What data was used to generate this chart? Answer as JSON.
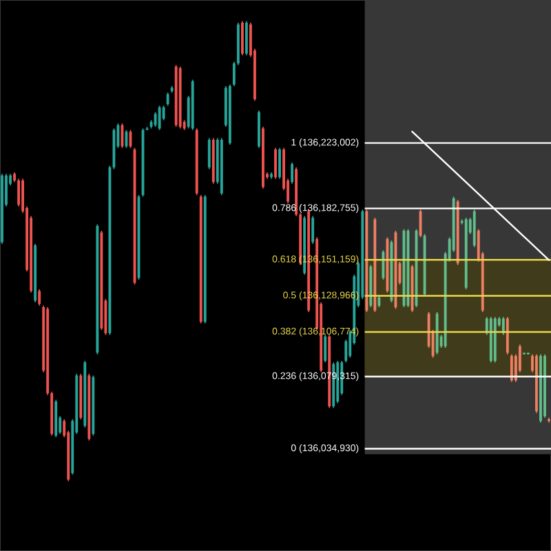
{
  "chart_data": {
    "type": "candlestick",
    "categories": [
      null,
      null,
      null,
      null,
      null,
      null,
      null,
      null,
      null,
      null,
      null,
      null,
      null,
      null,
      null,
      null,
      null,
      null,
      null,
      null,
      null,
      null,
      null,
      null,
      null,
      null,
      null,
      null,
      null,
      null,
      null,
      null,
      null,
      null,
      null,
      null,
      null,
      null,
      null,
      null,
      null,
      null,
      null,
      null,
      null,
      null,
      null,
      null,
      null,
      null,
      null,
      null,
      null,
      null,
      null,
      null,
      null,
      null,
      null,
      null,
      null,
      null,
      null,
      null,
      null,
      null,
      null,
      null,
      null,
      null,
      null,
      null,
      null,
      null,
      null,
      null,
      null,
      null,
      null,
      null,
      null,
      null,
      null,
      null,
      null,
      null,
      null,
      null,
      null,
      null,
      null,
      null,
      null,
      null,
      null,
      null,
      null,
      null,
      null,
      null,
      null,
      null,
      null,
      null,
      null,
      null,
      null,
      null,
      null,
      null,
      null,
      null,
      null,
      null,
      null,
      null,
      null,
      null,
      null,
      null,
      null,
      null,
      null,
      null,
      null,
      null,
      null,
      null,
      null,
      null,
      null,
      null,
      null
    ],
    "ohlc": [
      [
        136162000,
        136204000,
        136161000,
        136203000
      ],
      [
        136185000,
        136204000,
        136184000,
        136203000
      ],
      [
        136198000,
        136204000,
        136197000,
        136203000
      ],
      [
        136204000,
        136205000,
        136199000,
        136200000
      ],
      [
        136200000,
        136201000,
        136184000,
        136185000
      ],
      [
        136200000,
        136201000,
        136180000,
        136181000
      ],
      [
        136183000,
        136184000,
        136144000,
        136145000
      ],
      [
        136177000,
        136178000,
        136131000,
        136132000
      ],
      [
        136126000,
        136161000,
        136125000,
        136160000
      ],
      [
        136132000,
        136133000,
        136123000,
        136124000
      ],
      [
        136122000,
        136123000,
        136082000,
        136083000
      ],
      [
        136121000,
        136122000,
        136068000,
        136069000
      ],
      [
        136069000,
        136070000,
        136043000,
        136044000
      ],
      [
        136043000,
        136065000,
        136042000,
        136064000
      ],
      [
        136045000,
        136055000,
        136044000,
        136054000
      ],
      [
        136052000,
        136053000,
        136042000,
        136043000
      ],
      [
        136045000,
        136046000,
        136015000,
        136016000
      ],
      [
        136020000,
        136053000,
        136019000,
        136052000
      ],
      [
        136045000,
        136081000,
        136044000,
        136080000
      ],
      [
        136080000,
        136081000,
        136053000,
        136054000
      ],
      [
        136049000,
        136089000,
        136048000,
        136088000
      ],
      [
        136080000,
        136081000,
        136040000,
        136041000
      ],
      [
        136044000,
        136080000,
        136043000,
        136079000
      ],
      [
        136094000,
        136173000,
        136093000,
        136172000
      ],
      [
        136168000,
        136169000,
        136108000,
        136109000
      ],
      [
        136126000,
        136127000,
        136105000,
        136106000
      ],
      [
        136106000,
        136209000,
        136105000,
        136208000
      ],
      [
        136208000,
        136232000,
        136207000,
        136231000
      ],
      [
        136221000,
        136235000,
        136220000,
        136234000
      ],
      [
        136234000,
        136235000,
        136220000,
        136221000
      ],
      [
        136221000,
        136231000,
        136220000,
        136230000
      ],
      [
        136230000,
        136231000,
        136220000,
        136221000
      ],
      [
        136219000,
        136220000,
        136136000,
        136137000
      ],
      [
        136140000,
        136191000,
        136139000,
        136190000
      ],
      [
        136191000,
        136232000,
        136190000,
        136231000
      ],
      [
        136231000,
        136233000,
        136231000,
        136232000
      ],
      [
        136233000,
        136237000,
        136232000,
        136236000
      ],
      [
        136234000,
        136242000,
        136233000,
        136241000
      ],
      [
        136232000,
        136246000,
        136231000,
        136245000
      ],
      [
        136238000,
        136246000,
        136237000,
        136245000
      ],
      [
        136247000,
        136254000,
        136246000,
        136253000
      ],
      [
        136255000,
        136258000,
        136254000,
        136257000
      ],
      [
        136270000,
        136271000,
        136233000,
        136234000
      ],
      [
        136269000,
        136270000,
        136232000,
        136233000
      ],
      [
        136236000,
        136237000,
        136231000,
        136232000
      ],
      [
        136233000,
        136252000,
        136232000,
        136251000
      ],
      [
        136232000,
        136262000,
        136231000,
        136261000
      ],
      [
        136231000,
        136232000,
        136191000,
        136192000
      ],
      [
        136190000,
        136191000,
        136112000,
        136113000
      ],
      [
        136113000,
        136191000,
        136112000,
        136190000
      ],
      [
        136208000,
        136226000,
        136207000,
        136225000
      ],
      [
        136225000,
        136226000,
        136198000,
        136199000
      ],
      [
        136199000,
        136226000,
        136198000,
        136225000
      ],
      [
        136192000,
        136226000,
        136191000,
        136225000
      ],
      [
        136234000,
        136258000,
        136233000,
        136257000
      ],
      [
        136223000,
        136259000,
        136222000,
        136258000
      ],
      [
        136259000,
        136273000,
        136258000,
        136272000
      ],
      [
        136272000,
        136297000,
        136271000,
        136296000
      ],
      [
        136297000,
        136298000,
        136277000,
        136278000
      ],
      [
        136278000,
        136298000,
        136277000,
        136297000
      ],
      [
        136296000,
        136297000,
        136276000,
        136277000
      ],
      [
        136280000,
        136281000,
        136249000,
        136250000
      ],
      [
        136221000,
        136243000,
        136220000,
        136242000
      ],
      [
        136232000,
        136233000,
        136195000,
        136196000
      ],
      [
        136204000,
        136205000,
        136201000,
        136202000
      ],
      [
        136202000,
        136205000,
        136201000,
        136204000
      ],
      [
        136219000,
        136220000,
        136201000,
        136202000
      ],
      [
        136202000,
        136220000,
        136201000,
        136219000
      ],
      [
        136219000,
        136220000,
        136194000,
        136195000
      ],
      [
        136200000,
        136201000,
        136186000,
        136187000
      ],
      [
        136199000,
        136211000,
        136198000,
        136210000
      ],
      [
        136207000,
        136208000,
        136178000,
        136179000
      ],
      [
        136179000,
        136180000,
        136148000,
        136149000
      ],
      [
        136143000,
        136178000,
        136142000,
        136177000
      ],
      [
        136181000,
        136182000,
        136119000,
        136120000
      ],
      [
        136162000,
        136178000,
        136161000,
        136177000
      ],
      [
        136164000,
        136165000,
        136108000,
        136109000
      ],
      [
        136124000,
        136125000,
        136082000,
        136083000
      ],
      [
        136089000,
        136105000,
        136088000,
        136104000
      ],
      [
        136104000,
        136105000,
        136060000,
        136061000
      ],
      [
        136061000,
        136088000,
        136060000,
        136087000
      ],
      [
        136064000,
        136089000,
        136063000,
        136088000
      ],
      [
        136069000,
        136089000,
        136068000,
        136088000
      ],
      [
        136089000,
        136102000,
        136088000,
        136101000
      ],
      [
        136092000,
        136108000,
        136091000,
        136107000
      ],
      [
        136100000,
        136142000,
        136099000,
        136141000
      ],
      [
        136123000,
        136150000,
        136122000,
        136149000
      ],
      [
        136128000,
        136182000,
        136127000,
        136181000
      ],
      [
        136181000,
        136182000,
        136119000,
        136120000
      ],
      [
        136123000,
        136148000,
        136122000,
        136147000
      ],
      [
        136176000,
        136177000,
        136119000,
        136120000
      ],
      [
        136123000,
        136129000,
        136122000,
        136128000
      ],
      [
        136140000,
        136157000,
        136139000,
        136156000
      ],
      [
        136164000,
        136165000,
        136131000,
        136132000
      ],
      [
        136126000,
        136163000,
        136125000,
        136162000
      ],
      [
        136168000,
        136169000,
        136121000,
        136122000
      ],
      [
        136149000,
        136150000,
        136136000,
        136137000
      ],
      [
        136123000,
        136170000,
        136122000,
        136169000
      ],
      [
        136123000,
        136170000,
        136122000,
        136169000
      ],
      [
        136147000,
        136148000,
        136119000,
        136120000
      ],
      [
        136123000,
        136170000,
        136122000,
        136169000
      ],
      [
        136181000,
        136182000,
        136165000,
        136166000
      ],
      [
        136130000,
        136167000,
        136129000,
        136166000
      ],
      [
        136118000,
        136119000,
        136097000,
        136098000
      ],
      [
        136107000,
        136108000,
        136091000,
        136092000
      ],
      [
        136094000,
        136119000,
        136093000,
        136118000
      ],
      [
        136098000,
        136105000,
        136097000,
        136104000
      ],
      [
        136098000,
        136156000,
        136097000,
        136155000
      ],
      [
        136151000,
        136165000,
        136150000,
        136164000
      ],
      [
        136157000,
        136190000,
        136156000,
        136189000
      ],
      [
        136187000,
        136188000,
        136148000,
        136149000
      ],
      [
        136174000,
        136176000,
        136173000,
        136175000
      ],
      [
        136134000,
        136177000,
        136133000,
        136176000
      ],
      [
        136168000,
        136177000,
        136167000,
        136176000
      ],
      [
        136160000,
        136182000,
        136159000,
        136181000
      ],
      [
        136169000,
        136170000,
        136150000,
        136151000
      ],
      [
        136155000,
        136156000,
        136119000,
        136120000
      ],
      [
        136106000,
        136116000,
        136105000,
        136115000
      ],
      [
        136089000,
        136116000,
        136088000,
        136115000
      ],
      [
        136089000,
        136116000,
        136088000,
        136115000
      ],
      [
        136111000,
        136116000,
        136110000,
        136115000
      ],
      [
        136106000,
        136116000,
        136105000,
        136115000
      ],
      [
        136115000,
        136116000,
        136093000,
        136094000
      ],
      [
        136092000,
        136093000,
        136076000,
        136077000
      ],
      [
        136092000,
        136093000,
        136076000,
        136077000
      ],
      [
        136098000,
        136099000,
        136082000,
        136083000
      ],
      [
        136093000,
        136094000,
        136093000,
        136094000
      ],
      [
        136093000,
        136094000,
        136093000,
        136094000
      ],
      [
        136092000,
        136093000,
        136082000,
        136083000
      ],
      [
        136092000,
        136093000,
        136057000,
        136058000
      ],
      [
        136052000,
        136093000,
        136051000,
        136092000
      ],
      [
        136055000,
        136093000,
        136054000,
        136092000
      ],
      [
        136053000,
        136054000,
        136051000,
        136052000
      ]
    ],
    "colors": [
      "#26a69a",
      "#26a69a",
      "#26a69a",
      "#ef5350",
      "#ef5350",
      "#ef5350",
      "#ef5350",
      "#ef5350",
      "#26a69a",
      "#ef5350",
      "#ef5350",
      "#ef5350",
      "#ef5350",
      "#26a69a",
      "#26a69a",
      "#ef5350",
      "#ef5350",
      "#26a69a",
      "#26a69a",
      "#ef5350",
      "#26a69a",
      "#ef5350",
      "#26a69a",
      "#26a69a",
      "#ef5350",
      "#ef5350",
      "#26a69a",
      "#26a69a",
      "#26a69a",
      "#ef5350",
      "#26a69a",
      "#ef5350",
      "#ef5350",
      "#26a69a",
      "#26a69a",
      "#26a69a",
      "#26a69a",
      "#26a69a",
      "#26a69a",
      "#26a69a",
      "#26a69a",
      "#26a69a",
      "#ef5350",
      "#ef5350",
      "#ef5350",
      "#26a69a",
      "#26a69a",
      "#ef5350",
      "#ef5350",
      "#26a69a",
      "#26a69a",
      "#ef5350",
      "#26a69a",
      "#26a69a",
      "#26a69a",
      "#26a69a",
      "#26a69a",
      "#26a69a",
      "#ef5350",
      "#26a69a",
      "#ef5350",
      "#ef5350",
      "#26a69a",
      "#ef5350",
      "#ef5350",
      "#26a69a",
      "#ef5350",
      "#26a69a",
      "#ef5350",
      "#ef5350",
      "#26a69a",
      "#ef5350",
      "#ef5350",
      "#26a69a",
      "#ef5350",
      "#26a69a",
      "#ef5350",
      "#ef5350",
      "#26a69a",
      "#ef5350",
      "#26a69a",
      "#26a69a",
      "#26a69a",
      "#26a69a",
      "#26a69a",
      "#26a69a",
      "#26a69a",
      "#26a69a",
      "#ee7f62",
      "#62bd8c",
      "#ee7f62",
      "#62bd8c",
      "#62bd8c",
      "#ee7f62",
      "#62bd8c",
      "#ee7f62",
      "#ee7f62",
      "#62bd8c",
      "#62bd8c",
      "#ee7f62",
      "#62bd8c",
      "#ee7f62",
      "#62bd8c",
      "#ee7f62",
      "#ee7f62",
      "#62bd8c",
      "#62bd8c",
      "#62bd8c",
      "#62bd8c",
      "#62bd8c",
      "#ee7f62",
      "#62bd8c",
      "#62bd8c",
      "#62bd8c",
      "#62bd8c",
      "#ee7f62",
      "#ee7f62",
      "#62bd8c",
      "#62bd8c",
      "#62bd8c",
      "#62bd8c",
      "#62bd8c",
      "#ee7f62",
      "#ee7f62",
      "#ee7f62",
      "#ee7f62",
      "#62bd8c",
      "#62bd8c",
      "#ee7f62",
      "#ee7f62",
      "#62bd8c",
      "#62bd8c",
      "#ee7f62"
    ],
    "series": [
      {
        "type": "line",
        "color": "#ffffff",
        "values": [
          null,
          null,
          null,
          null,
          null,
          null,
          null,
          null,
          null,
          null,
          null,
          null,
          null,
          null,
          null,
          null,
          null,
          null,
          null,
          null,
          null,
          null,
          null,
          null,
          null,
          null,
          null,
          null,
          null,
          null,
          null,
          null,
          null,
          null,
          null,
          null,
          null,
          null,
          null,
          null,
          null,
          null,
          null,
          null,
          null,
          null,
          null,
          null,
          null,
          null,
          null,
          null,
          null,
          null,
          null,
          null,
          null,
          null,
          null,
          null,
          null,
          null,
          null,
          null,
          null,
          null,
          null,
          null,
          null,
          null,
          null,
          null,
          null,
          null,
          null,
          null,
          null,
          null,
          null,
          null,
          null,
          null,
          null,
          null,
          null,
          null,
          null,
          null,
          null,
          null,
          null,
          null,
          null,
          null,
          null,
          null,
          null,
          null,
          null,
          136230000,
          null,
          null,
          null,
          null,
          null,
          null,
          null,
          null,
          null,
          null,
          null,
          null,
          null,
          null,
          null,
          null,
          null,
          null,
          null,
          null,
          null,
          null,
          null,
          null,
          null,
          null,
          null,
          null,
          null,
          null,
          null,
          null,
          136151000
        ]
      }
    ],
    "ylim": [
      135972000,
      136311000
    ],
    "bands": [
      {
        "axis": "y",
        "from": 136079315,
        "to": 136151159,
        "color": "#403b1b"
      }
    ],
    "ref_lines": [
      {
        "axis": "y",
        "value": 136223002,
        "label": "1 (136,223,002)",
        "color": "#ffffff"
      },
      {
        "axis": "y",
        "value": 136182755,
        "label": "0.786 (136,182,755)",
        "color": "#ffffff"
      },
      {
        "axis": "y",
        "value": 136151159,
        "label": "0.618 (136,151,159)",
        "color": "#e9d84c"
      },
      {
        "axis": "y",
        "value": 136128966,
        "label": "0.5 (136,128,966)",
        "color": "#e9d84c"
      },
      {
        "axis": "y",
        "value": 136106774,
        "label": "0.382 (136,106,774)",
        "color": "#e9d84c"
      },
      {
        "axis": "y",
        "value": 136079315,
        "label": "0.236 (136,079,315)",
        "color": "#ffffff"
      },
      {
        "axis": "y",
        "value": 136034930,
        "label": "0 (136,034,930)",
        "color": "#ffffff"
      }
    ]
  }
}
